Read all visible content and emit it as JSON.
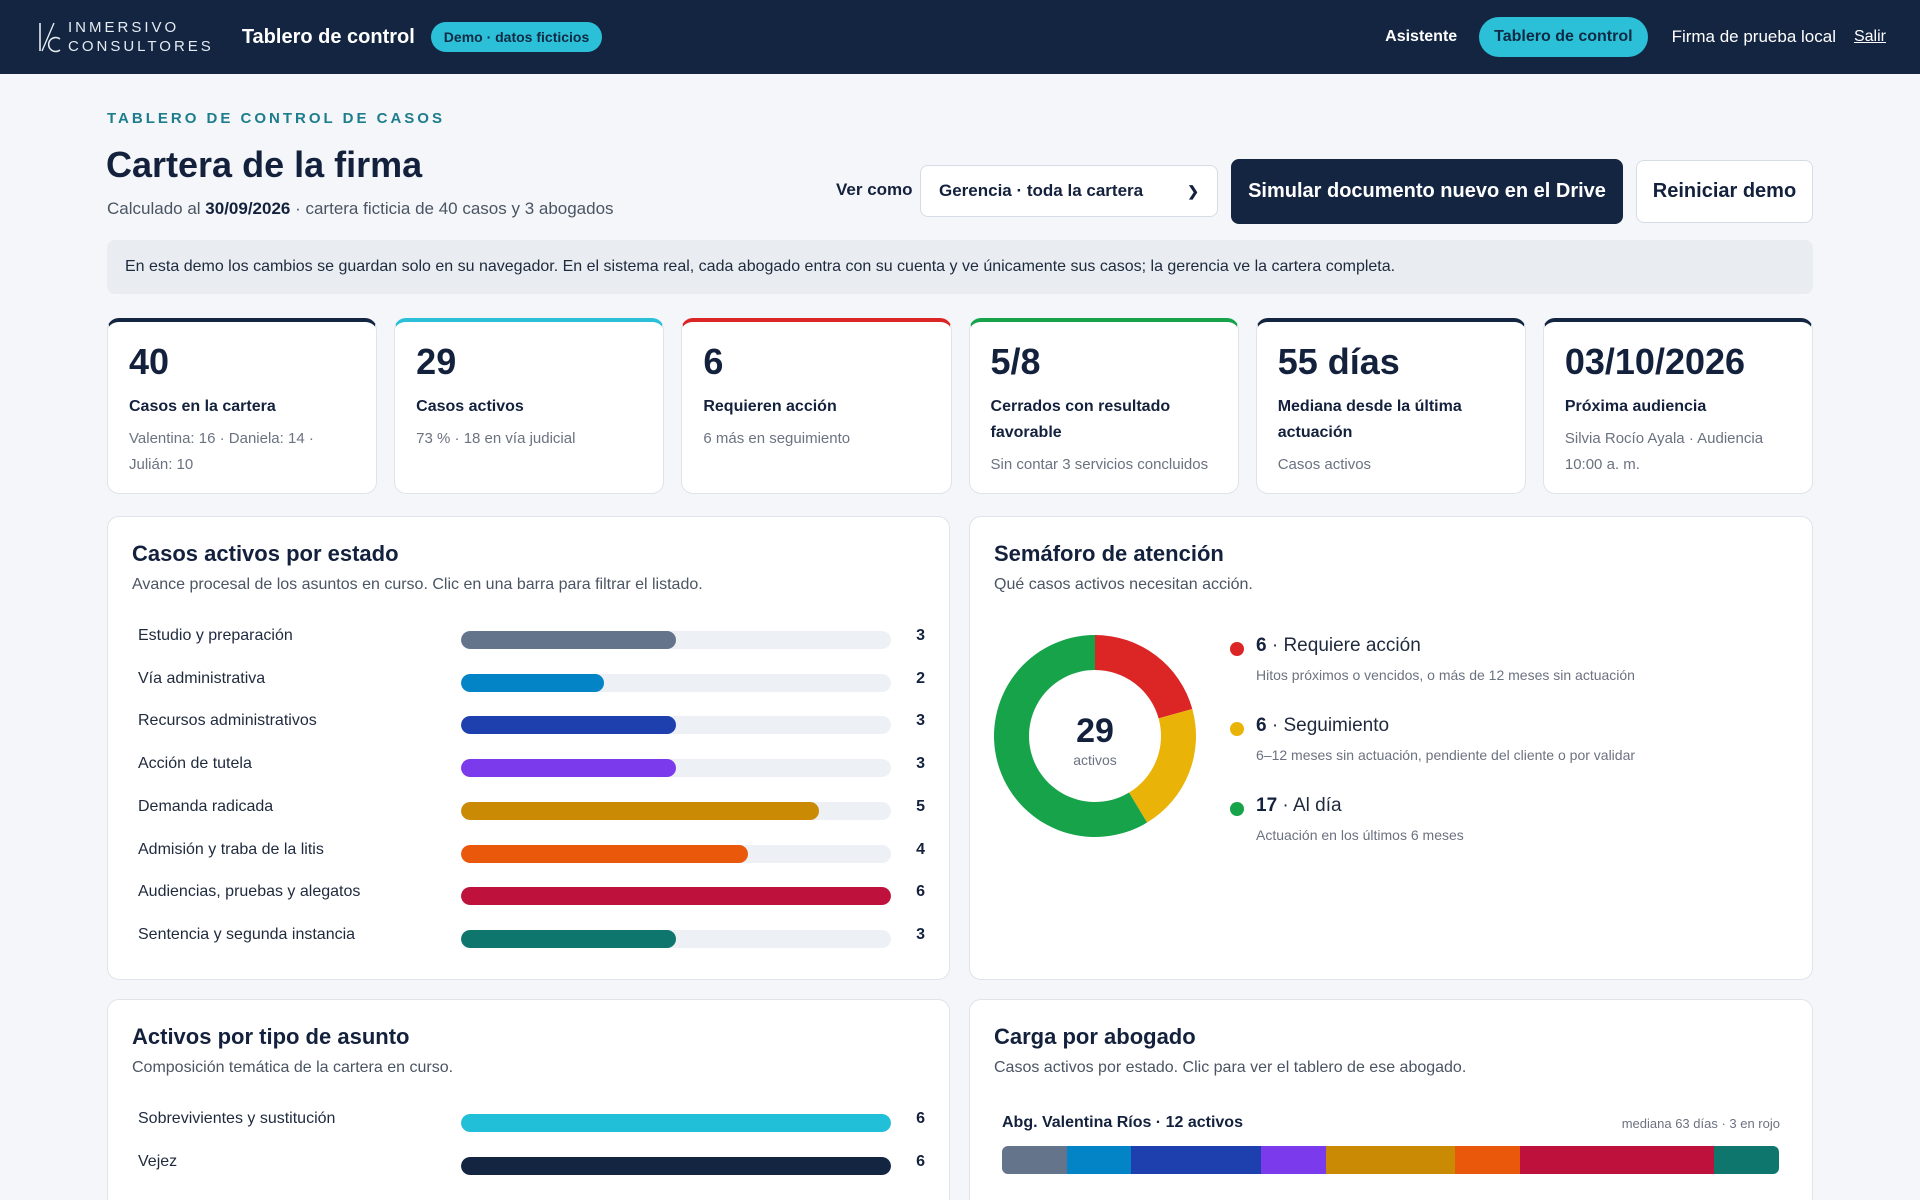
{
  "topbar": {
    "logo_mark": "I/C",
    "logo_line1": "INMERSIVO",
    "logo_line2": "CONSULTORES",
    "app_title": "Tablero de control",
    "demo_badge": "Demo · datos ficticios",
    "nav_assistant": "Asistente",
    "nav_dashboard": "Tablero de control",
    "firm_name": "Firma de prueba local",
    "logout": "Salir"
  },
  "header": {
    "eyebrow": "TABLERO DE CONTROL DE CASOS",
    "title": "Cartera de la firma",
    "calc_prefix": "Calculado al ",
    "calc_date": "30/09/2026",
    "calc_suffix": " · cartera ficticia de 40 casos y 3 abogados",
    "view_as_label": "Ver como",
    "view_as_value": "Gerencia · toda la cartera",
    "simulate_button": "Simular documento nuevo en el Drive",
    "reset_button": "Reiniciar demo"
  },
  "notice": "En esta demo los cambios se guardan solo en su navegador. En el sistema real, cada abogado entra con su cuenta y ve únicamente sus casos; la gerencia ve la cartera completa.",
  "kpis": [
    {
      "value": "40",
      "label": "Casos en la cartera",
      "sub": "Valentina: 16 · Daniela: 14 · Julián: 10",
      "accent": "#132541"
    },
    {
      "value": "29",
      "label": "Casos activos",
      "sub": "73 % · 18 en vía judicial",
      "accent": "#2bc0d8"
    },
    {
      "value": "6",
      "label": "Requieren acción",
      "sub": "6 más en seguimiento",
      "accent": "#dc2626"
    },
    {
      "value": "5/8",
      "label": "Cerrados con resultado favorable",
      "sub": "Sin contar 3 servicios concluidos",
      "accent": "#16a34a"
    },
    {
      "value": "55 días",
      "label": "Mediana desde la última actuación",
      "sub": "Casos activos",
      "accent": "#132541"
    },
    {
      "value": "03/10/2026",
      "label": "Próxima audiencia",
      "sub": "Silvia Rocío Ayala · Audiencia 10:00 a. m.",
      "accent": "#132541"
    }
  ],
  "status_panel": {
    "title": "Casos activos por estado",
    "subtitle": "Avance procesal de los asuntos en curso. Clic en una barra para filtrar el listado.",
    "max": 6,
    "rows": [
      {
        "label": "Estudio y preparación",
        "value": 3,
        "color": "#64748b"
      },
      {
        "label": "Vía administrativa",
        "value": 2,
        "color": "#0284c7"
      },
      {
        "label": "Recursos administrativos",
        "value": 3,
        "color": "#1e40af"
      },
      {
        "label": "Acción de tutela",
        "value": 3,
        "color": "#7c3aed"
      },
      {
        "label": "Demanda radicada",
        "value": 5,
        "color": "#ca8a04"
      },
      {
        "label": "Admisión y traba de la litis",
        "value": 4,
        "color": "#ea580c"
      },
      {
        "label": "Audiencias, pruebas y alegatos",
        "value": 6,
        "color": "#be123c"
      },
      {
        "label": "Sentencia y segunda instancia",
        "value": 3,
        "color": "#0f766e"
      }
    ]
  },
  "traffic_panel": {
    "title": "Semáforo de atención",
    "subtitle": "Qué casos activos necesitan acción.",
    "total": "29",
    "total_label": "activos",
    "items": [
      {
        "count": "6",
        "label": " · Requiere acción",
        "desc": "Hitos próximos o vencidos, o más de 12 meses sin actuación",
        "color": "#dc2626",
        "value": 6
      },
      {
        "count": "6",
        "label": " · Seguimiento",
        "desc": "6–12 meses sin actuación, pendiente del cliente o por validar",
        "color": "#eab308",
        "value": 6
      },
      {
        "count": "17",
        "label": " · Al día",
        "desc": "Actuación en los últimos 6 meses",
        "color": "#16a34a",
        "value": 17
      }
    ]
  },
  "type_panel": {
    "title": "Activos por tipo de asunto",
    "subtitle": "Composición temática de la cartera en curso.",
    "max": 6,
    "rows": [
      {
        "label": "Sobrevivientes y sustitución",
        "value": 6,
        "color": "#22c0d8"
      },
      {
        "label": "Vejez",
        "value": 6,
        "color": "#132541"
      }
    ]
  },
  "lawyer_panel": {
    "title": "Carga por abogado",
    "subtitle": "Casos activos por estado. Clic para ver el tablero de ese abogado.",
    "lawyers": [
      {
        "name": "Abg. Valentina Ríos · 12 activos",
        "meta": "mediana 63 días · 3 en rojo",
        "segments": [
          {
            "value": 1,
            "color": "#64748b"
          },
          {
            "value": 1,
            "color": "#0284c7"
          },
          {
            "value": 2,
            "color": "#1e40af"
          },
          {
            "value": 1,
            "color": "#7c3aed"
          },
          {
            "value": 2,
            "color": "#ca8a04"
          },
          {
            "value": 1,
            "color": "#ea580c"
          },
          {
            "value": 3,
            "color": "#be123c"
          },
          {
            "value": 1,
            "color": "#0f766e"
          }
        ]
      }
    ]
  }
}
